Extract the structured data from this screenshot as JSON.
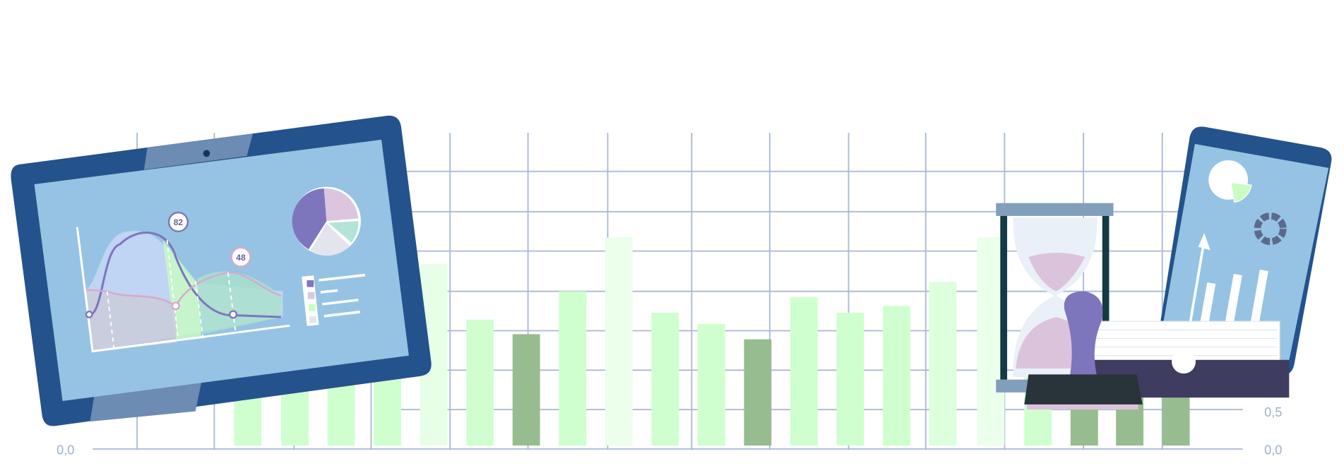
{
  "tablet": {
    "callouts": [
      "82",
      "48"
    ]
  },
  "axis_left": {
    "labels": [
      "0,0"
    ]
  },
  "axis_right": {
    "labels": [
      "0,5",
      "0,0"
    ]
  }
}
